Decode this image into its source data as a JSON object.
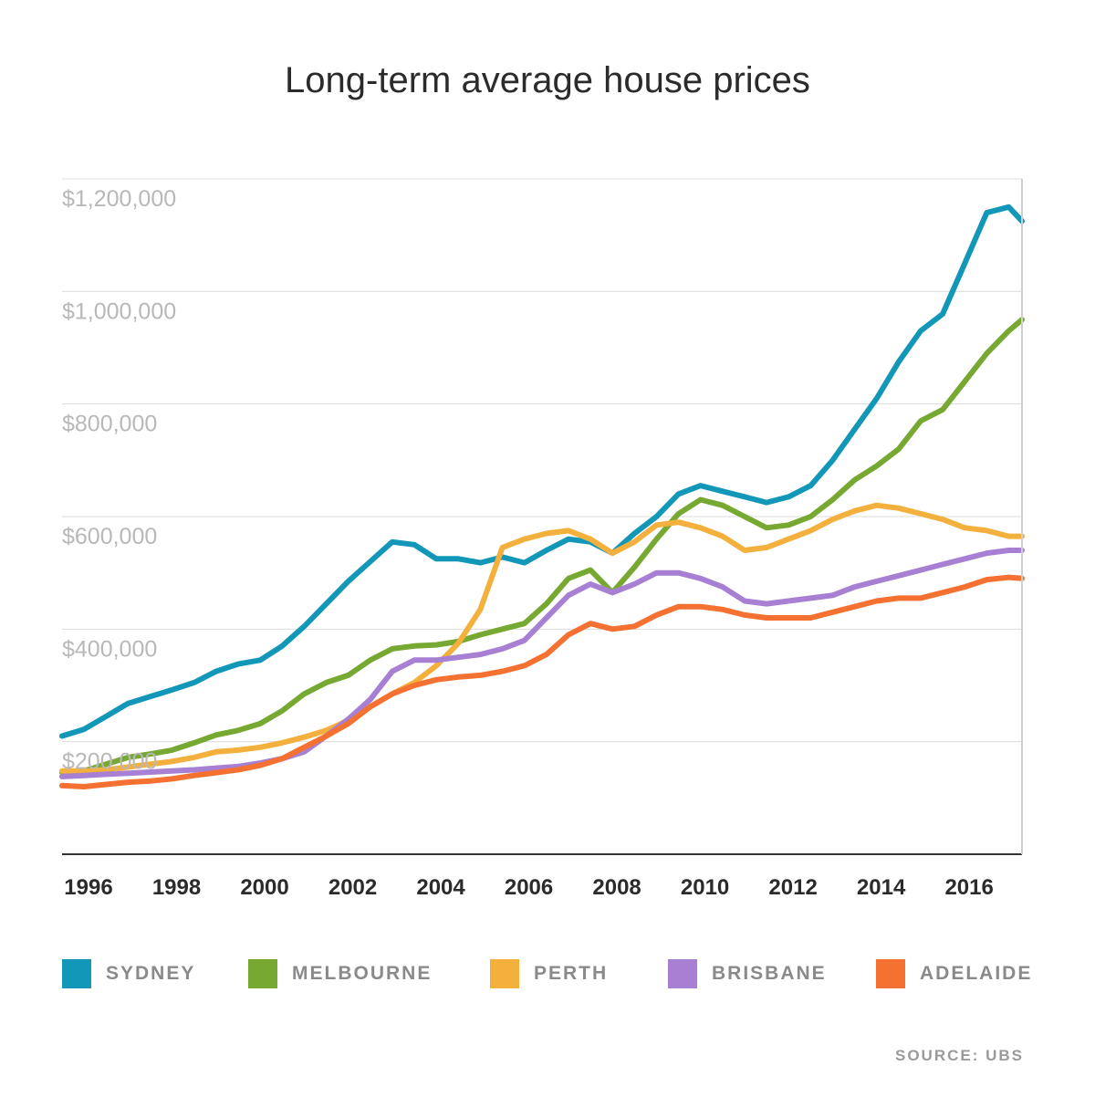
{
  "chart_data": {
    "type": "line",
    "title": "Long-term average house prices",
    "xlabel": "",
    "ylabel": "",
    "xlim": [
      1996,
      2017.8
    ],
    "ylim": [
      0,
      1200000
    ],
    "grid": true,
    "legend_position": "bottom",
    "x_ticks": [
      "1996",
      "1998",
      "2000",
      "2002",
      "2004",
      "2006",
      "2008",
      "2010",
      "2012",
      "2014",
      "2016"
    ],
    "y_ticks": [
      "$200,000",
      "$400,000",
      "$600,000",
      "$800,000",
      "$1,000,000",
      "$1,200,000"
    ],
    "y_tick_values": [
      200000,
      400000,
      600000,
      800000,
      1000000,
      1200000
    ],
    "series": [
      {
        "name": "SYDNEY",
        "color": "#1297b8",
        "x": [
          1996,
          1996.5,
          1997,
          1997.5,
          1998,
          1998.5,
          1999,
          1999.5,
          2000,
          2000.5,
          2001,
          2001.5,
          2002,
          2002.5,
          2003,
          2003.5,
          2004,
          2004.5,
          2005,
          2005.5,
          2006,
          2006.5,
          2007,
          2007.5,
          2008,
          2008.5,
          2009,
          2009.5,
          2010,
          2010.5,
          2011,
          2011.5,
          2012,
          2012.5,
          2013,
          2013.5,
          2014,
          2014.5,
          2015,
          2015.5,
          2016,
          2016.5,
          2017,
          2017.5,
          2017.8
        ],
        "values": [
          210000,
          222000,
          245000,
          268000,
          280000,
          292000,
          305000,
          325000,
          338000,
          345000,
          370000,
          405000,
          445000,
          485000,
          520000,
          555000,
          550000,
          525000,
          525000,
          518000,
          528000,
          518000,
          540000,
          560000,
          555000,
          535000,
          570000,
          600000,
          640000,
          655000,
          645000,
          635000,
          625000,
          635000,
          655000,
          700000,
          755000,
          810000,
          875000,
          930000,
          960000,
          1050000,
          1140000,
          1150000,
          1125000
        ]
      },
      {
        "name": "MELBOURNE",
        "color": "#76a832",
        "x": [
          1996,
          1996.5,
          1997,
          1997.5,
          1998,
          1998.5,
          1999,
          1999.5,
          2000,
          2000.5,
          2001,
          2001.5,
          2002,
          2002.5,
          2003,
          2003.5,
          2004,
          2004.5,
          2005,
          2005.5,
          2006,
          2006.5,
          2007,
          2007.5,
          2008,
          2008.5,
          2009,
          2009.5,
          2010,
          2010.5,
          2011,
          2011.5,
          2012,
          2012.5,
          2013,
          2013.5,
          2014,
          2014.5,
          2015,
          2015.5,
          2016,
          2016.5,
          2017,
          2017.5,
          2017.8
        ],
        "values": [
          145000,
          148000,
          160000,
          172000,
          178000,
          185000,
          198000,
          212000,
          220000,
          232000,
          255000,
          285000,
          305000,
          318000,
          345000,
          365000,
          370000,
          372000,
          378000,
          390000,
          400000,
          410000,
          445000,
          490000,
          505000,
          465000,
          510000,
          560000,
          605000,
          630000,
          620000,
          600000,
          580000,
          585000,
          600000,
          630000,
          665000,
          690000,
          720000,
          770000,
          790000,
          840000,
          890000,
          930000,
          950000
        ]
      },
      {
        "name": "PERTH",
        "color": "#f4b03d",
        "x": [
          1996,
          1996.5,
          1997,
          1997.5,
          1998,
          1998.5,
          1999,
          1999.5,
          2000,
          2000.5,
          2001,
          2001.5,
          2002,
          2002.5,
          2003,
          2003.5,
          2004,
          2004.5,
          2005,
          2005.5,
          2006,
          2006.5,
          2007,
          2007.5,
          2008,
          2008.5,
          2009,
          2009.5,
          2010,
          2010.5,
          2011,
          2011.5,
          2012,
          2012.5,
          2013,
          2013.5,
          2014,
          2014.5,
          2015,
          2015.5,
          2016,
          2016.5,
          2017,
          2017.5,
          2017.8
        ],
        "values": [
          148000,
          148000,
          150000,
          155000,
          160000,
          165000,
          172000,
          182000,
          185000,
          190000,
          198000,
          208000,
          220000,
          238000,
          262000,
          285000,
          305000,
          335000,
          375000,
          435000,
          545000,
          560000,
          570000,
          575000,
          560000,
          535000,
          555000,
          585000,
          590000,
          580000,
          565000,
          540000,
          545000,
          560000,
          575000,
          595000,
          610000,
          620000,
          615000,
          605000,
          595000,
          580000,
          575000,
          565000,
          565000
        ]
      },
      {
        "name": "BRISBANE",
        "color": "#a77fd3",
        "x": [
          1996,
          1996.5,
          1997,
          1997.5,
          1998,
          1998.5,
          1999,
          1999.5,
          2000,
          2000.5,
          2001,
          2001.5,
          2002,
          2002.5,
          2003,
          2003.5,
          2004,
          2004.5,
          2005,
          2005.5,
          2006,
          2006.5,
          2007,
          2007.5,
          2008,
          2008.5,
          2009,
          2009.5,
          2010,
          2010.5,
          2011,
          2011.5,
          2012,
          2012.5,
          2013,
          2013.5,
          2014,
          2014.5,
          2015,
          2015.5,
          2016,
          2016.5,
          2017,
          2017.5,
          2017.8
        ],
        "values": [
          138000,
          140000,
          142000,
          144000,
          146000,
          148000,
          150000,
          153000,
          156000,
          162000,
          170000,
          182000,
          210000,
          240000,
          275000,
          325000,
          345000,
          345000,
          350000,
          355000,
          365000,
          380000,
          420000,
          460000,
          480000,
          465000,
          480000,
          500000,
          500000,
          490000,
          475000,
          450000,
          445000,
          450000,
          455000,
          460000,
          475000,
          485000,
          495000,
          505000,
          515000,
          525000,
          535000,
          540000,
          540000
        ]
      },
      {
        "name": "ADELAIDE",
        "color": "#f47131",
        "x": [
          1996,
          1996.5,
          1997,
          1997.5,
          1998,
          1998.5,
          1999,
          1999.5,
          2000,
          2000.5,
          2001,
          2001.5,
          2002,
          2002.5,
          2003,
          2003.5,
          2004,
          2004.5,
          2005,
          2005.5,
          2006,
          2006.5,
          2007,
          2007.5,
          2008,
          2008.5,
          2009,
          2009.5,
          2010,
          2010.5,
          2011,
          2011.5,
          2012,
          2012.5,
          2013,
          2013.5,
          2014,
          2014.5,
          2015,
          2015.5,
          2016,
          2016.5,
          2017,
          2017.5,
          2017.8
        ],
        "values": [
          122000,
          120000,
          124000,
          128000,
          130000,
          134000,
          140000,
          145000,
          150000,
          158000,
          170000,
          190000,
          210000,
          232000,
          262000,
          285000,
          300000,
          310000,
          315000,
          318000,
          325000,
          335000,
          355000,
          390000,
          410000,
          400000,
          405000,
          425000,
          440000,
          440000,
          435000,
          425000,
          420000,
          420000,
          420000,
          430000,
          440000,
          450000,
          455000,
          455000,
          465000,
          475000,
          488000,
          492000,
          490000
        ]
      }
    ]
  },
  "source_label": "SOURCE: UBS"
}
